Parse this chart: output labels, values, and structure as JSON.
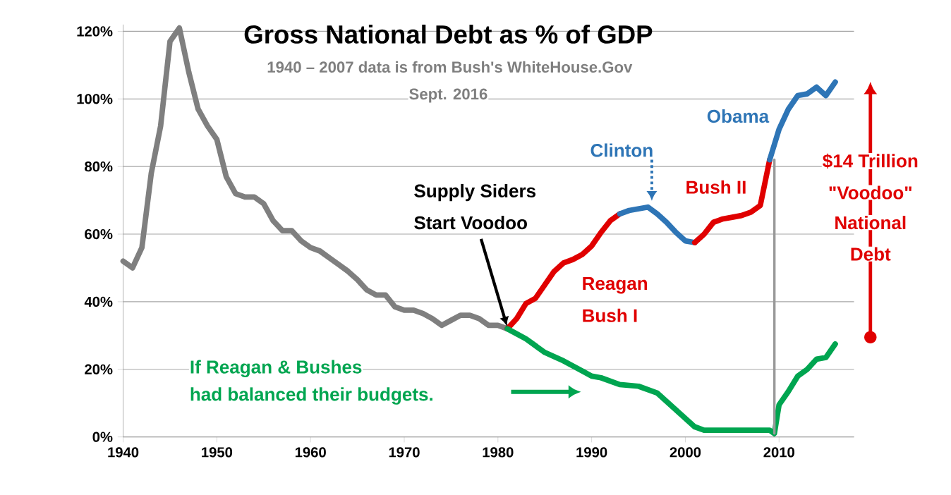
{
  "chart_data": {
    "type": "line",
    "title": "Gross National Debt  as % of GDP",
    "subtitle": "1940 – 2007 data is from Bush's WhiteHouse.Gov",
    "annotations": [
      "Sept. 2016",
      "Obama",
      "Clinton",
      "Bush II",
      "Reagan",
      "Bush I",
      "Supply Siders",
      "Start Voodoo",
      "$14 Trillion",
      "\"Voodoo\"",
      "National",
      "Debt",
      "If Reagan & Bushes",
      "had balanced their budgets."
    ],
    "xlim": [
      1940,
      2018
    ],
    "xticks": [
      1940,
      1950,
      1960,
      1970,
      1980,
      1990,
      2000,
      2010
    ],
    "ylim": [
      0,
      122
    ],
    "yticks": [
      {
        "value": 0,
        "label": "0%"
      },
      {
        "value": 20,
        "label": "20%"
      },
      {
        "value": 40,
        "label": "40%"
      },
      {
        "value": 60,
        "label": "60%"
      },
      {
        "value": 80,
        "label": "80%"
      },
      {
        "value": 100,
        "label": "100%"
      },
      {
        "value": 120,
        "label": "120%"
      }
    ],
    "grid": "y",
    "series": [
      {
        "color": "#7f7f7f",
        "x": [
          1940,
          1941,
          1942,
          1943,
          1944,
          1945,
          1946,
          1947,
          1948,
          1949,
          1950,
          1951,
          1952,
          1953,
          1954,
          1955,
          1956,
          1957,
          1958,
          1959,
          1960,
          1961,
          1962,
          1963,
          1964,
          1965,
          1966,
          1967,
          1968,
          1969,
          1970,
          1971,
          1972,
          1973,
          1974,
          1975,
          1976,
          1977,
          1978,
          1979,
          1980,
          1981
        ],
        "values": [
          52,
          50,
          56,
          78,
          92,
          117,
          121,
          108,
          97,
          92,
          88,
          77,
          72,
          71,
          71,
          69,
          64,
          61,
          61,
          58,
          56,
          55,
          53,
          51,
          49,
          46.5,
          43.5,
          42,
          42,
          38.5,
          37.5,
          37.5,
          36.5,
          35,
          33,
          34.5,
          36,
          36,
          35,
          33,
          33,
          32
        ]
      },
      {
        "color": "#e00000",
        "x": [
          1981,
          1982,
          1983,
          1984,
          1985,
          1986,
          1987,
          1988,
          1989,
          1990,
          1991,
          1992,
          1993
        ],
        "values": [
          32,
          35,
          39.5,
          41,
          45,
          49,
          51.5,
          52.5,
          54,
          56.5,
          60.5,
          64,
          66
        ]
      },
      {
        "color": "#2e75b6",
        "x": [
          1993,
          1994,
          1995,
          1996,
          1997,
          1998,
          1999,
          2000,
          2001
        ],
        "values": [
          66,
          67,
          67.5,
          68,
          66,
          63.5,
          60.5,
          58,
          57.5
        ]
      },
      {
        "color": "#e00000",
        "x": [
          2001,
          2002,
          2003,
          2004,
          2005,
          2006,
          2007,
          2008,
          2009
        ],
        "values": [
          57.5,
          60,
          63.5,
          64.5,
          65,
          65.5,
          66.5,
          68.5,
          82
        ]
      },
      {
        "color": "#2e75b6",
        "x": [
          2009,
          2010,
          2011,
          2012,
          2013,
          2014,
          2015,
          2016
        ],
        "values": [
          82,
          91,
          97,
          101,
          101.5,
          103.5,
          101,
          105
        ]
      },
      {
        "color": "#00a550",
        "x": [
          1981,
          1983,
          1985,
          1987,
          1989,
          1990,
          1991,
          1993,
          1995,
          1997,
          1999,
          2001,
          2002,
          2005,
          2009,
          2009.5,
          2010,
          2011,
          2012,
          2013,
          2014,
          2015,
          2016
        ],
        "values": [
          32,
          29,
          25,
          22.5,
          19.5,
          18,
          17.5,
          15.5,
          15,
          13,
          8,
          3,
          2,
          2,
          2,
          1,
          9.5,
          13.5,
          18,
          20,
          23,
          23.5,
          27.5
        ]
      },
      {
        "color": "#999999",
        "x": [
          2009.5,
          2009.5
        ],
        "values": [
          1,
          82
        ]
      }
    ]
  }
}
